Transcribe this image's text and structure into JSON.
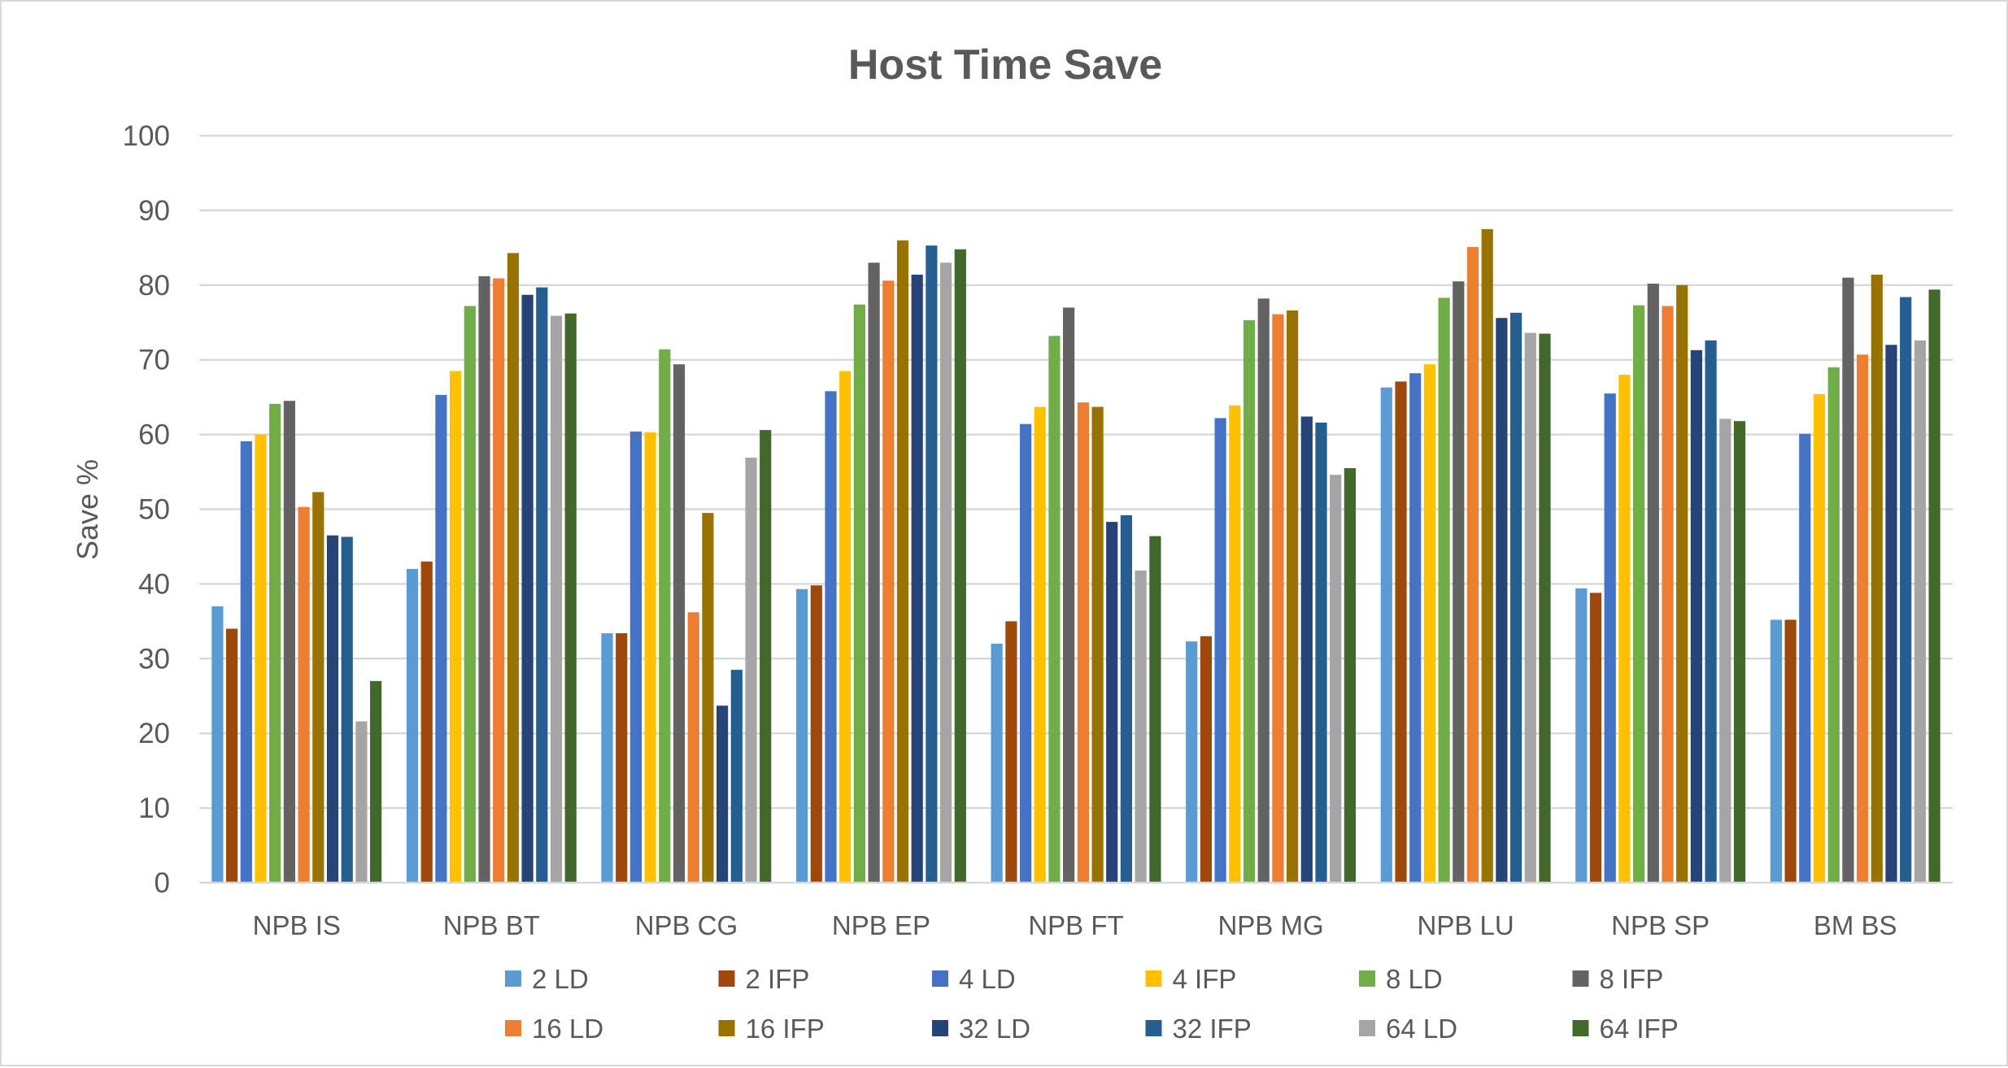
{
  "chart_data": {
    "type": "bar",
    "title": "Host Time Save",
    "xlabel": "",
    "ylabel": "Save %",
    "ylim": [
      0,
      100
    ],
    "yticks": [
      "0",
      "10",
      "20",
      "30",
      "40",
      "50",
      "60",
      "70",
      "80",
      "90",
      "100"
    ],
    "grid": true,
    "legend_position": "bottom",
    "categories": [
      "NPB IS",
      "NPB BT",
      "NPB CG",
      "NPB EP",
      "NPB FT",
      "NPB MG",
      "NPB LU",
      "NPB SP",
      "BM BS"
    ],
    "series": [
      {
        "name": "2 LD",
        "color": "#5b9bd5",
        "values": [
          37,
          42,
          33.4,
          39.3,
          32,
          32.3,
          66.3,
          39.4,
          35.2
        ]
      },
      {
        "name": "2 IFP",
        "color": "#9e480e",
        "values": [
          34,
          43,
          33.4,
          39.8,
          35,
          33,
          67.1,
          38.8,
          35.2
        ]
      },
      {
        "name": "4 LD",
        "color": "#4472c4",
        "values": [
          59.1,
          65.3,
          60.4,
          65.8,
          61.4,
          62.2,
          68.2,
          65.5,
          60.1
        ]
      },
      {
        "name": "4 IFP",
        "color": "#ffc000",
        "values": [
          60,
          68.5,
          60.3,
          68.5,
          63.7,
          63.9,
          69.4,
          68,
          65.4
        ]
      },
      {
        "name": "8 LD",
        "color": "#70ad47",
        "values": [
          64.1,
          77.2,
          71.4,
          77.4,
          73.2,
          75.3,
          78.3,
          77.3,
          69
        ]
      },
      {
        "name": "8 IFP",
        "color": "#636363",
        "values": [
          64.5,
          81.2,
          69.4,
          83,
          77,
          78.2,
          80.5,
          80.2,
          81
        ]
      },
      {
        "name": "16 LD",
        "color": "#ed7d31",
        "values": [
          50.3,
          80.9,
          36.2,
          80.6,
          64.3,
          76.1,
          85.1,
          77.2,
          70.7
        ]
      },
      {
        "name": "16 IFP",
        "color": "#997300",
        "values": [
          52.3,
          84.3,
          49.5,
          86,
          63.7,
          76.6,
          87.5,
          80,
          81.4
        ]
      },
      {
        "name": "32 LD",
        "color": "#264478",
        "values": [
          46.5,
          78.7,
          23.7,
          81.4,
          48.3,
          62.4,
          75.6,
          71.3,
          72
        ]
      },
      {
        "name": "32 IFP",
        "color": "#255e91",
        "values": [
          46.3,
          79.7,
          28.5,
          85.3,
          49.2,
          61.6,
          76.3,
          72.6,
          78.4
        ]
      },
      {
        "name": "64 LD",
        "color": "#a5a5a5",
        "values": [
          21.6,
          75.9,
          56.9,
          83,
          41.8,
          54.6,
          73.6,
          62.1,
          72.6
        ]
      },
      {
        "name": "64 IFP",
        "color": "#43682b",
        "values": [
          27,
          76.2,
          60.6,
          84.8,
          46.4,
          55.5,
          73.5,
          61.8,
          79.4
        ]
      }
    ]
  }
}
